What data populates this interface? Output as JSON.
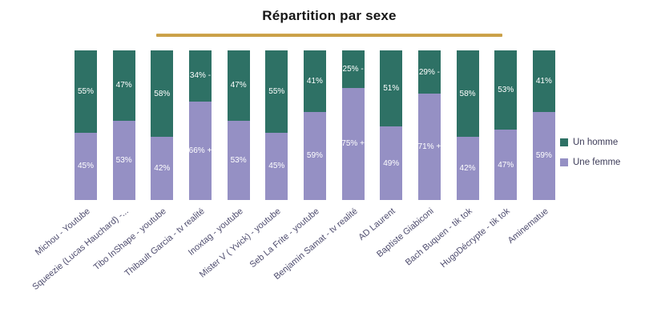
{
  "title": "Répartition par sexe",
  "accent_underline_color": "#d0a850",
  "legend": {
    "items": [
      {
        "label": "Un homme"
      },
      {
        "label": "Une femme"
      }
    ]
  },
  "chart_data": {
    "type": "bar",
    "stacked": true,
    "orientation": "vertical",
    "unit": "percent",
    "ylim": [
      0,
      100
    ],
    "grid": false,
    "legend_position": "right",
    "title": "Répartition par sexe",
    "xlabel": "",
    "ylabel": "",
    "categories": [
      "Michou - Youtube",
      "Squeezie (Lucas Hauchard) -...",
      "Tibo InShape - youtube",
      "Thibault Garcia - tv realité",
      "Inoxtag - youtube",
      "Mister V ( Yvick) - youtube",
      "Seb La Frite - youtube",
      "Benjamin Samat - tv realité",
      "AD Laurent",
      "Baptiste Giabiconi",
      "Bach Buquen - tik tok",
      "HugoDécrypte - tik tok",
      "Aminematue"
    ],
    "series": [
      {
        "name": "Un homme",
        "color": "#2e7165",
        "values": [
          55,
          47,
          58,
          34,
          47,
          55,
          41,
          25,
          51,
          29,
          58,
          53,
          41
        ],
        "bar_labels": [
          "55%",
          "47%",
          "58%",
          "34% -",
          "47%",
          "55%",
          "41%",
          "25% -",
          "51%",
          "29% -",
          "58%",
          "53%",
          "41%"
        ]
      },
      {
        "name": "Une femme",
        "color": "#9590c4",
        "values": [
          45,
          53,
          42,
          66,
          53,
          45,
          59,
          75,
          49,
          71,
          42,
          47,
          59
        ],
        "bar_labels": [
          "45%",
          "53%",
          "42%",
          "66% +",
          "53%",
          "45%",
          "59%",
          "75% +",
          "49%",
          "71% +",
          "42%",
          "47%",
          "59%"
        ]
      }
    ]
  }
}
